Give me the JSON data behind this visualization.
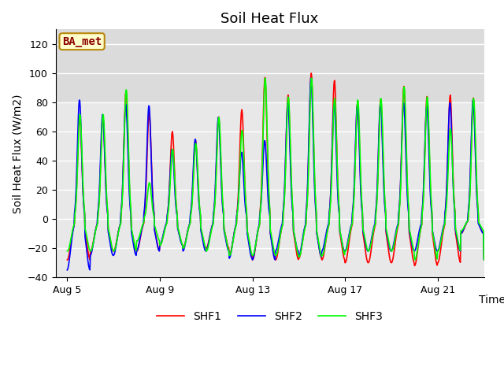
{
  "title": "Soil Heat Flux",
  "ylabel": "Soil Heat Flux (W/m2)",
  "xlabel": "Time",
  "xlim_days": [
    4.5,
    23.0
  ],
  "ylim": [
    -40,
    130
  ],
  "yticks": [
    -40,
    -20,
    0,
    20,
    40,
    60,
    80,
    100,
    120
  ],
  "xtick_positions": [
    5,
    9,
    13,
    17,
    21
  ],
  "xtick_labels": [
    "Aug 5",
    "Aug 9",
    "Aug 13",
    "Aug 17",
    "Aug 21"
  ],
  "series_colors": [
    "red",
    "blue",
    "lime"
  ],
  "series_labels": [
    "SHF1",
    "SHF2",
    "SHF3"
  ],
  "annotation_text": "BA_met",
  "plot_bg_color": "#e8e8e8",
  "upper_bg_color": "#d8d8d8",
  "title_fontsize": 13,
  "axis_fontsize": 10,
  "tick_fontsize": 9,
  "linewidth": 1.2
}
